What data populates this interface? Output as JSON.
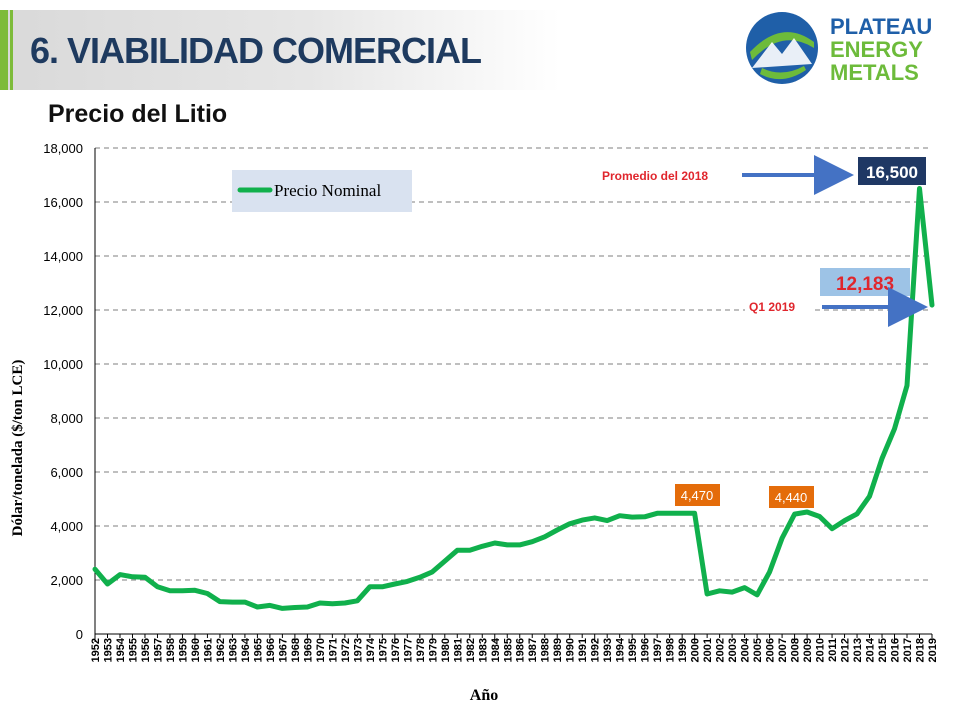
{
  "header": {
    "title": "6. VIABILIDAD COMERCIAL",
    "subtitle": "Precio del Litio"
  },
  "logo": {
    "line1": "PLATEAU",
    "line2": "ENERGY",
    "line3": "METALS",
    "colors": {
      "line1": "#1f5fa8",
      "line2": "#6dbb3b",
      "line3": "#6dbb3b"
    }
  },
  "colors": {
    "series": "#10b04c",
    "grid": "#7f7f7f",
    "orange_box": "#e46c0a",
    "navy_box": "#1f3864",
    "light_blue_box": "#9dc3e6",
    "red_text": "#e0262d",
    "arrow": "#4472c4"
  },
  "chart_data": {
    "type": "line",
    "xlabel": "Año",
    "ylabel": "Dólar/tonelada  ($/ton LCE)",
    "ylim": [
      0,
      18000
    ],
    "yticks": [
      "0",
      "2,000",
      "4,000",
      "6,000",
      "8,000",
      "10,000",
      "12,000",
      "14,000",
      "16,000",
      "18,000"
    ],
    "grid": true,
    "legend": {
      "position": "top-left",
      "label": "Precio Nominal"
    },
    "x": [
      "1952",
      "1953",
      "1954",
      "1955",
      "1956",
      "1957",
      "1958",
      "1959",
      "1960",
      "1961",
      "1962",
      "1963",
      "1964",
      "1965",
      "1966",
      "1967",
      "1968",
      "1969",
      "1970",
      "1971",
      "1972",
      "1973",
      "1974",
      "1975",
      "1976",
      "1977",
      "1978",
      "1979",
      "1980",
      "1981",
      "1982",
      "1983",
      "1984",
      "1985",
      "1986",
      "1987",
      "1988",
      "1989",
      "1990",
      "1991",
      "1992",
      "1993",
      "1994",
      "1995",
      "1996",
      "1997",
      "1998",
      "1999",
      "2000",
      "2001",
      "2002",
      "2003",
      "2004",
      "2005",
      "2006",
      "2007",
      "2008",
      "2009",
      "2010",
      "2011",
      "2012",
      "2013",
      "2014",
      "2015",
      "2016",
      "2017",
      "2018",
      "2019"
    ],
    "series": [
      {
        "values": [
          2400,
          1850,
          2200,
          2120,
          2100,
          1750,
          1600,
          1600,
          1620,
          1500,
          1200,
          1180,
          1180,
          1000,
          1060,
          950,
          980,
          1000,
          1150,
          1120,
          1150,
          1230,
          1750,
          1750,
          1850,
          1950,
          2100,
          2300,
          2700,
          3100,
          3100,
          3250,
          3370,
          3300,
          3300,
          3420,
          3600,
          3850,
          4080,
          4220,
          4300,
          4200,
          4380,
          4330,
          4340,
          4470,
          4470,
          4470,
          4470,
          1480,
          1600,
          1550,
          1720,
          1450,
          2300,
          3550,
          4440,
          4520,
          4350,
          3900,
          4200,
          4450,
          5100,
          6500,
          7600,
          9200,
          16500,
          12183
        ]
      }
    ],
    "annotations": [
      {
        "label": "4,470",
        "x": "1999",
        "style": "orange"
      },
      {
        "label": "4,440",
        "x": "2008",
        "style": "orange"
      },
      {
        "label": "Promedio del 2018",
        "value_label": "16,500",
        "x": "2018",
        "style": "navy-arrow"
      },
      {
        "label": "Q1 2019",
        "value_label": "12,183",
        "x": "2019",
        "style": "lightblue-arrow"
      }
    ]
  }
}
